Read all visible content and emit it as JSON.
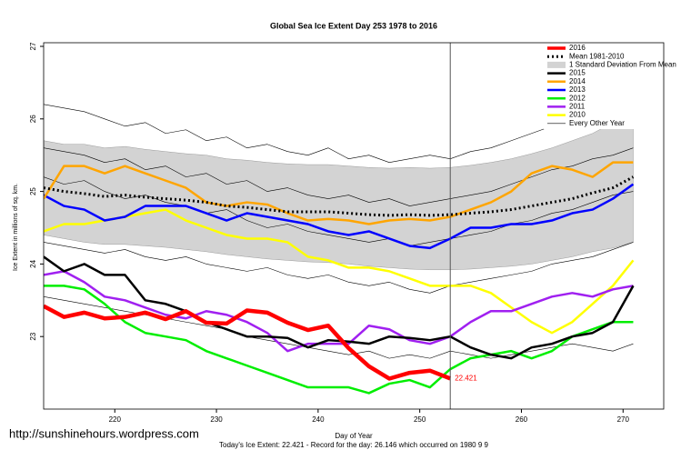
{
  "chart_data": {
    "type": "line",
    "title": "Global Sea Ice Extent Day 253 1978 to 2016",
    "xlabel": "Day of Year",
    "ylabel": "Ice Extent in millions of sq. km.",
    "footer": "Today's Ice Extent: 22.421  - Record for the day: 26.146 which occurred on 1980 9 9",
    "watermark": "http://sunshinehours.wordpress.com",
    "xlim": [
      213,
      274
    ],
    "ylim": [
      22.0,
      27.05
    ],
    "xticks": [
      220,
      230,
      240,
      250,
      260,
      270
    ],
    "yticks": [
      23,
      24,
      25,
      26,
      27
    ],
    "marker_day": 253,
    "legend": "upper right",
    "x": [
      213,
      215,
      217,
      219,
      221,
      223,
      225,
      227,
      229,
      231,
      233,
      235,
      237,
      239,
      241,
      243,
      245,
      247,
      249,
      251,
      253,
      255,
      257,
      259,
      261,
      263,
      265,
      267,
      269,
      271
    ],
    "band": {
      "name": "1 Standard Deviation From Mean",
      "color": "#d3d3d3",
      "upper": [
        25.7,
        25.65,
        25.65,
        25.6,
        25.62,
        25.58,
        25.55,
        25.52,
        25.5,
        25.45,
        25.43,
        25.4,
        25.38,
        25.37,
        25.37,
        25.35,
        25.33,
        25.32,
        25.33,
        25.32,
        25.33,
        25.36,
        25.4,
        25.45,
        25.52,
        25.6,
        25.7,
        25.8,
        25.95,
        26.1
      ],
      "lower": [
        24.4,
        24.35,
        24.3,
        24.27,
        24.27,
        24.25,
        24.23,
        24.2,
        24.17,
        24.13,
        24.1,
        24.07,
        24.05,
        24.03,
        24.02,
        24.0,
        23.97,
        23.95,
        23.93,
        23.92,
        23.92,
        23.93,
        23.95,
        23.97,
        24.0,
        24.05,
        24.1,
        24.17,
        24.22,
        24.3
      ]
    },
    "series": [
      {
        "name": "2016",
        "color": "#ff0000",
        "linewidth": 4.5,
        "show_last_label": true,
        "values": [
          23.42,
          23.27,
          23.33,
          23.25,
          23.27,
          23.33,
          23.24,
          23.35,
          23.19,
          23.18,
          23.36,
          23.33,
          23.19,
          23.09,
          23.15,
          22.84,
          22.59,
          22.42,
          22.5,
          22.53,
          22.421,
          null,
          null,
          null,
          null,
          null,
          null,
          null,
          null,
          null
        ]
      },
      {
        "name": "Mean 1981-2010",
        "color": "#000000",
        "linewidth": 3,
        "dotted": true,
        "values": [
          25.05,
          25.0,
          24.97,
          24.93,
          24.95,
          24.92,
          24.9,
          24.88,
          24.85,
          24.8,
          24.78,
          24.75,
          24.72,
          24.72,
          24.72,
          24.7,
          24.68,
          24.67,
          24.68,
          24.67,
          24.68,
          24.7,
          24.72,
          24.75,
          24.8,
          24.85,
          24.9,
          24.98,
          25.05,
          25.2
        ]
      },
      {
        "name": "2015",
        "color": "#000000",
        "linewidth": 2.5,
        "values": [
          24.1,
          23.9,
          24.0,
          23.85,
          23.85,
          23.5,
          23.45,
          23.35,
          23.2,
          23.1,
          23.0,
          23.0,
          22.98,
          22.85,
          22.95,
          22.93,
          22.9,
          23.0,
          22.98,
          22.95,
          23.0,
          22.85,
          22.75,
          22.7,
          22.85,
          22.9,
          23.0,
          23.05,
          23.2,
          23.7
        ]
      },
      {
        "name": "2014",
        "color": "#ffa500",
        "linewidth": 2.5,
        "values": [
          24.9,
          25.35,
          25.35,
          25.25,
          25.35,
          25.25,
          25.15,
          25.05,
          24.85,
          24.8,
          24.85,
          24.82,
          24.7,
          24.6,
          24.62,
          24.6,
          24.55,
          24.6,
          24.62,
          24.6,
          24.65,
          24.75,
          24.85,
          25.0,
          25.25,
          25.35,
          25.3,
          25.2,
          25.4,
          25.4
        ]
      },
      {
        "name": "2013",
        "color": "#0000ff",
        "linewidth": 2.5,
        "values": [
          24.95,
          24.8,
          24.75,
          24.6,
          24.65,
          24.8,
          24.8,
          24.8,
          24.7,
          24.6,
          24.7,
          24.65,
          24.6,
          24.55,
          24.45,
          24.4,
          24.45,
          24.35,
          24.25,
          24.22,
          24.35,
          24.5,
          24.5,
          24.55,
          24.55,
          24.6,
          24.7,
          24.75,
          24.9,
          25.1
        ]
      },
      {
        "name": "2012",
        "color": "#00ee00",
        "linewidth": 2.5,
        "values": [
          23.7,
          23.7,
          23.65,
          23.45,
          23.2,
          23.05,
          23.0,
          22.95,
          22.8,
          22.7,
          22.6,
          22.5,
          22.4,
          22.3,
          22.3,
          22.3,
          22.22,
          22.35,
          22.4,
          22.3,
          22.55,
          22.7,
          22.75,
          22.8,
          22.7,
          22.8,
          23.0,
          23.1,
          23.2,
          23.2
        ]
      },
      {
        "name": "2011",
        "color": "#a020f0",
        "linewidth": 2.5,
        "values": [
          23.85,
          23.9,
          23.75,
          23.55,
          23.5,
          23.4,
          23.3,
          23.25,
          23.35,
          23.3,
          23.2,
          23.05,
          22.8,
          22.9,
          22.9,
          22.9,
          23.15,
          23.1,
          22.95,
          22.9,
          23.0,
          23.2,
          23.35,
          23.35,
          23.45,
          23.55,
          23.6,
          23.55,
          23.65,
          23.7
        ]
      },
      {
        "name": "2010",
        "color": "#ffff00",
        "linewidth": 2.5,
        "values": [
          24.45,
          24.55,
          24.55,
          24.6,
          24.65,
          24.7,
          24.75,
          24.6,
          24.5,
          24.4,
          24.35,
          24.35,
          24.3,
          24.1,
          24.05,
          23.95,
          23.95,
          23.9,
          23.8,
          23.7,
          23.7,
          23.7,
          23.6,
          23.4,
          23.2,
          23.05,
          23.2,
          23.45,
          23.7,
          24.05
        ]
      }
    ],
    "other_years": {
      "name": "Every Other Year",
      "color": "#000000",
      "lines": [
        [
          26.2,
          26.15,
          26.1,
          26.0,
          25.9,
          25.95,
          25.8,
          25.85,
          25.7,
          25.75,
          25.6,
          25.65,
          25.55,
          25.5,
          25.6,
          25.45,
          25.5,
          25.4,
          25.45,
          25.5,
          25.45,
          25.55,
          25.6,
          25.7,
          25.8,
          25.9,
          26.0,
          26.1,
          26.2,
          26.4
        ],
        [
          25.6,
          25.55,
          25.5,
          25.4,
          25.45,
          25.3,
          25.35,
          25.2,
          25.25,
          25.1,
          25.15,
          25.0,
          25.05,
          24.95,
          24.9,
          24.95,
          24.85,
          24.9,
          24.8,
          24.85,
          24.9,
          24.95,
          25.0,
          25.1,
          25.2,
          25.3,
          25.35,
          25.45,
          25.5,
          25.6
        ],
        [
          24.3,
          24.25,
          24.2,
          24.15,
          24.2,
          24.1,
          24.05,
          24.1,
          24.0,
          23.95,
          23.9,
          23.95,
          23.85,
          23.8,
          23.85,
          23.75,
          23.7,
          23.75,
          23.65,
          23.6,
          23.7,
          23.75,
          23.8,
          23.85,
          23.9,
          24.0,
          24.05,
          24.1,
          24.2,
          24.3
        ],
        [
          23.55,
          23.5,
          23.45,
          23.4,
          23.35,
          23.3,
          23.25,
          23.2,
          23.15,
          23.1,
          23.0,
          22.95,
          22.9,
          22.85,
          22.8,
          22.75,
          22.8,
          22.7,
          22.75,
          22.7,
          22.8,
          22.75,
          22.7,
          22.75,
          22.8,
          22.85,
          22.9,
          22.85,
          22.8,
          22.9
        ],
        [
          25.2,
          25.1,
          25.15,
          25.0,
          24.9,
          24.95,
          24.85,
          24.8,
          24.7,
          24.75,
          24.6,
          24.5,
          24.55,
          24.45,
          24.4,
          24.35,
          24.3,
          24.35,
          24.25,
          24.3,
          24.35,
          24.4,
          24.45,
          24.55,
          24.6,
          24.7,
          24.75,
          24.85,
          24.95,
          25.0
        ]
      ]
    }
  }
}
